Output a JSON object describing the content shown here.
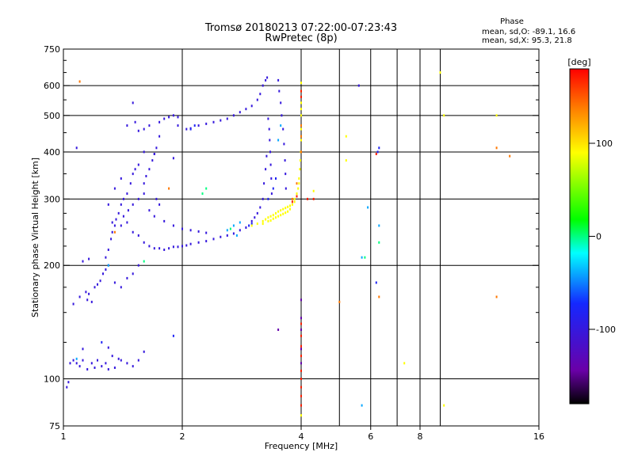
{
  "chart_data": {
    "type": "scatter",
    "title": "Tromsø 20180213 07:22:00-07:23:43",
    "subtitle": "RwPretec (8p)",
    "xlabel": "Frequency [MHz]",
    "ylabel": "Stationary phase Virtual Height [km]",
    "x_scale": "log",
    "y_scale": "log",
    "xlim": [
      1,
      16
    ],
    "ylim": [
      75,
      750
    ],
    "x_ticks": [
      1,
      2,
      4,
      6,
      8,
      16
    ],
    "x_tick_labels": [
      "1",
      "2",
      "4",
      "6",
      "8",
      "16"
    ],
    "x_gridlines": [
      1,
      2,
      4,
      6,
      8,
      16
    ],
    "x_extra_gridlines": [
      5,
      7,
      9
    ],
    "y_ticks": [
      75,
      100,
      200,
      300,
      400,
      500,
      600,
      750
    ],
    "y_tick_labels": [
      "75",
      "100",
      "200",
      "300",
      "400",
      "500",
      "600",
      "750"
    ],
    "y_minor_ticks": [
      125,
      150,
      175,
      225,
      250,
      275,
      350,
      450,
      550,
      650,
      700
    ],
    "grid": true,
    "stats": {
      "header": "Phase",
      "line_o": "mean, sd,O: -89.1, 16.6",
      "line_x": "mean, sd,X:  95.3, 21.8"
    },
    "colorbar": {
      "label": "[deg]",
      "range": [
        -180,
        180
      ],
      "ticks": [
        100,
        0,
        -100
      ],
      "tick_labels": [
        "100",
        "0",
        "-100"
      ],
      "colormap": "rainbow (black-purple-blue-cyan-green-yellow-orange-red)"
    },
    "series": [
      {
        "color_value": -100,
        "points": [
          [
            1.02,
            95
          ],
          [
            1.03,
            98
          ],
          [
            1.04,
            110
          ],
          [
            1.06,
            112
          ],
          [
            1.08,
            110
          ],
          [
            1.1,
            108
          ],
          [
            1.12,
            112
          ],
          [
            1.15,
            106
          ],
          [
            1.18,
            110
          ],
          [
            1.2,
            107
          ],
          [
            1.22,
            112
          ],
          [
            1.25,
            108
          ],
          [
            1.28,
            110
          ],
          [
            1.3,
            106
          ],
          [
            1.35,
            107
          ],
          [
            1.4,
            112
          ],
          [
            1.45,
            110
          ],
          [
            1.5,
            108
          ],
          [
            1.55,
            112
          ],
          [
            1.6,
            118
          ],
          [
            1.12,
            120
          ],
          [
            1.3,
            121
          ],
          [
            1.33,
            115
          ],
          [
            1.38,
            113
          ],
          [
            1.06,
            158
          ],
          [
            1.1,
            165
          ],
          [
            1.14,
            170
          ],
          [
            1.16,
            168
          ],
          [
            1.2,
            175
          ],
          [
            1.22,
            178
          ],
          [
            1.24,
            182
          ],
          [
            1.26,
            190
          ],
          [
            1.28,
            195
          ],
          [
            1.3,
            200
          ],
          [
            1.15,
            162
          ],
          [
            1.18,
            160
          ],
          [
            1.12,
            205
          ],
          [
            1.16,
            208
          ],
          [
            1.35,
            180
          ],
          [
            1.4,
            175
          ],
          [
            1.45,
            185
          ],
          [
            1.5,
            190
          ],
          [
            1.55,
            200
          ],
          [
            1.28,
            210
          ],
          [
            1.3,
            220
          ],
          [
            1.32,
            235
          ],
          [
            1.33,
            245
          ],
          [
            1.35,
            255
          ],
          [
            1.36,
            265
          ],
          [
            1.38,
            275
          ],
          [
            1.4,
            290
          ],
          [
            1.42,
            300
          ],
          [
            1.45,
            310
          ],
          [
            1.48,
            330
          ],
          [
            1.5,
            350
          ],
          [
            1.52,
            360
          ],
          [
            1.55,
            370
          ],
          [
            1.3,
            290
          ],
          [
            1.35,
            320
          ],
          [
            1.4,
            340
          ],
          [
            1.45,
            260
          ],
          [
            1.5,
            245
          ],
          [
            1.55,
            240
          ],
          [
            1.6,
            230
          ],
          [
            1.65,
            225
          ],
          [
            1.7,
            222
          ],
          [
            1.75,
            222
          ],
          [
            1.8,
            220
          ],
          [
            1.85,
            222
          ],
          [
            1.9,
            224
          ],
          [
            1.95,
            224
          ],
          [
            2.0,
            225
          ],
          [
            2.05,
            226
          ],
          [
            2.1,
            228
          ],
          [
            2.2,
            230
          ],
          [
            2.3,
            232
          ],
          [
            2.4,
            235
          ],
          [
            2.5,
            238
          ],
          [
            2.6,
            240
          ],
          [
            2.7,
            243
          ],
          [
            2.8,
            248
          ],
          [
            2.9,
            252
          ],
          [
            1.33,
            260
          ],
          [
            1.4,
            255
          ],
          [
            1.42,
            270
          ],
          [
            1.46,
            280
          ],
          [
            1.5,
            290
          ],
          [
            1.55,
            300
          ],
          [
            1.6,
            310
          ],
          [
            1.65,
            280
          ],
          [
            1.7,
            270
          ],
          [
            1.8,
            262
          ],
          [
            1.9,
            255
          ],
          [
            2.0,
            250
          ],
          [
            2.1,
            248
          ],
          [
            2.2,
            246
          ],
          [
            2.3,
            244
          ],
          [
            1.6,
            330
          ],
          [
            1.62,
            345
          ],
          [
            1.65,
            360
          ],
          [
            1.68,
            380
          ],
          [
            1.7,
            395
          ],
          [
            1.72,
            410
          ],
          [
            1.75,
            440
          ],
          [
            1.55,
            455
          ],
          [
            1.6,
            460
          ],
          [
            1.65,
            470
          ],
          [
            1.75,
            480
          ],
          [
            1.8,
            490
          ],
          [
            1.85,
            495
          ],
          [
            1.9,
            500
          ],
          [
            1.95,
            495
          ],
          [
            2.05,
            460
          ],
          [
            2.1,
            462
          ],
          [
            2.2,
            470
          ],
          [
            2.3,
            475
          ],
          [
            2.4,
            480
          ],
          [
            2.5,
            485
          ],
          [
            2.6,
            490
          ],
          [
            2.7,
            500
          ],
          [
            2.8,
            510
          ],
          [
            2.9,
            520
          ],
          [
            3.0,
            530
          ],
          [
            3.1,
            550
          ],
          [
            3.15,
            570
          ],
          [
            3.2,
            600
          ],
          [
            3.25,
            620
          ],
          [
            3.28,
            630
          ],
          [
            3.5,
            620
          ],
          [
            3.52,
            580
          ],
          [
            3.55,
            540
          ],
          [
            3.57,
            500
          ],
          [
            3.6,
            460
          ],
          [
            3.62,
            420
          ],
          [
            3.64,
            380
          ],
          [
            3.65,
            350
          ],
          [
            3.66,
            320
          ],
          [
            3.3,
            490
          ],
          [
            3.32,
            460
          ],
          [
            3.33,
            430
          ],
          [
            3.34,
            400
          ],
          [
            3.35,
            370
          ],
          [
            3.36,
            340
          ],
          [
            3.37,
            310
          ],
          [
            3.2,
            300
          ],
          [
            3.15,
            285
          ],
          [
            3.1,
            275
          ],
          [
            3.05,
            268
          ],
          [
            3.0,
            262
          ],
          [
            3.22,
            330
          ],
          [
            3.25,
            360
          ],
          [
            3.27,
            390
          ],
          [
            1.72,
            300
          ],
          [
            1.75,
            290
          ],
          [
            1.9,
            385
          ],
          [
            1.5,
            540
          ],
          [
            1.08,
            410
          ],
          [
            1.95,
            470
          ],
          [
            5.6,
            600
          ],
          [
            1.6,
            400
          ],
          [
            1.7,
            395
          ],
          [
            1.45,
            470
          ],
          [
            1.52,
            480
          ]
        ]
      },
      {
        "color_value": -80,
        "points": [
          [
            2.95,
            255
          ],
          [
            3.0,
            258
          ],
          [
            3.3,
            300
          ],
          [
            3.4,
            320
          ],
          [
            3.45,
            340
          ],
          [
            1.25,
            125
          ],
          [
            1.9,
            130
          ],
          [
            6.2,
            180
          ],
          [
            6.25,
            400
          ],
          [
            6.3,
            410
          ],
          [
            2.1,
            460
          ],
          [
            2.15,
            470
          ]
        ]
      },
      {
        "color_value": -40,
        "points": [
          [
            2.6,
            248
          ],
          [
            2.7,
            255
          ],
          [
            2.8,
            260
          ],
          [
            3.5,
            430
          ],
          [
            3.55,
            470
          ],
          [
            5.7,
            210
          ],
          [
            5.9,
            285
          ],
          [
            6.3,
            255
          ],
          [
            5.7,
            85
          ],
          [
            1.08,
            113
          ],
          [
            1.3,
            200
          ],
          [
            2.75,
            240
          ]
        ]
      },
      {
        "color_value": 0,
        "points": [
          [
            2.25,
            310
          ],
          [
            2.3,
            320
          ],
          [
            2.65,
            250
          ],
          [
            5.8,
            210
          ],
          [
            1.6,
            205
          ],
          [
            6.3,
            230
          ]
        ]
      },
      {
        "color_value": 90,
        "points": [
          [
            3.0,
            255
          ],
          [
            3.1,
            258
          ],
          [
            3.2,
            262
          ],
          [
            3.25,
            265
          ],
          [
            3.3,
            268
          ],
          [
            3.35,
            270
          ],
          [
            3.4,
            272
          ],
          [
            3.45,
            275
          ],
          [
            3.5,
            278
          ],
          [
            3.55,
            280
          ],
          [
            3.6,
            282
          ],
          [
            3.65,
            284
          ],
          [
            3.7,
            286
          ],
          [
            3.75,
            288
          ],
          [
            3.8,
            290
          ],
          [
            3.85,
            300
          ],
          [
            3.9,
            310
          ],
          [
            3.93,
            320
          ],
          [
            3.95,
            340
          ],
          [
            3.97,
            360
          ],
          [
            3.98,
            380
          ],
          [
            3.99,
            400
          ],
          [
            4.0,
            430
          ],
          [
            4.0,
            460
          ],
          [
            4.0,
            500
          ],
          [
            4.0,
            540
          ],
          [
            4.0,
            580
          ],
          [
            4.0,
            610
          ],
          [
            3.3,
            262
          ],
          [
            3.4,
            266
          ],
          [
            3.5,
            270
          ],
          [
            3.6,
            274
          ],
          [
            3.7,
            278
          ],
          [
            3.2,
            258
          ],
          [
            3.35,
            263
          ],
          [
            3.45,
            268
          ],
          [
            3.55,
            272
          ],
          [
            3.65,
            276
          ],
          [
            3.75,
            282
          ],
          [
            3.85,
            295
          ],
          [
            3.95,
            330
          ],
          [
            4.0,
            520
          ],
          [
            9.0,
            650
          ],
          [
            9.2,
            500
          ],
          [
            12.5,
            500
          ],
          [
            5.2,
            440
          ],
          [
            5.2,
            380
          ],
          [
            7.3,
            110
          ],
          [
            9.2,
            85
          ],
          [
            4.0,
            80
          ],
          [
            4.3,
            315
          ]
        ]
      },
      {
        "color_value": 140,
        "points": [
          [
            4.0,
            470
          ],
          [
            4.0,
            440
          ],
          [
            4.0,
            400
          ],
          [
            3.9,
            330
          ],
          [
            3.8,
            300
          ],
          [
            5.0,
            160
          ],
          [
            6.3,
            165
          ],
          [
            12.5,
            165
          ],
          [
            12.5,
            410
          ],
          [
            13.5,
            390
          ],
          [
            1.35,
            245
          ],
          [
            1.85,
            320
          ],
          [
            1.1,
            615
          ]
        ]
      },
      {
        "color_value": 170,
        "points": [
          [
            4.0,
            580
          ],
          [
            4.0,
            560
          ],
          [
            3.9,
            305
          ],
          [
            3.8,
            295
          ],
          [
            4.0,
            90
          ],
          [
            4.0,
            95
          ],
          [
            4.0,
            100
          ],
          [
            4.0,
            85
          ],
          [
            4.0,
            105
          ],
          [
            4.3,
            300
          ],
          [
            4.15,
            300
          ],
          [
            4.0,
            122
          ],
          [
            4.0,
            115
          ],
          [
            4.0,
            130
          ],
          [
            4.0,
            140
          ],
          [
            6.2,
            395
          ]
        ]
      },
      {
        "color_value": -140,
        "points": [
          [
            4.0,
            110
          ],
          [
            4.0,
            120
          ],
          [
            4.0,
            135
          ],
          [
            4.0,
            145
          ],
          [
            3.5,
            135
          ],
          [
            4.0,
            162
          ]
        ]
      }
    ]
  }
}
